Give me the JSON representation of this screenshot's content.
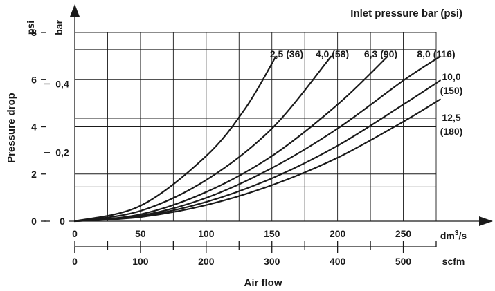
{
  "chart_data": {
    "type": "line",
    "title": "Inlet pressure bar (psi)",
    "ylabel": "Pressure drop",
    "xlabel": "Air flow",
    "x_unit_primary": "dm³/s",
    "x_unit_secondary": "scfm",
    "y_unit_primary": "psi",
    "y_unit_secondary": "bar",
    "xlim": [
      0,
      275
    ],
    "ylim_bar": [
      0,
      0.55
    ],
    "ylim_psi": [
      0,
      8
    ],
    "x_ticks_primary": [
      "0",
      "50",
      "100",
      "150",
      "200",
      "250"
    ],
    "x_ticks_primary_values": [
      0,
      50,
      100,
      150,
      200,
      250
    ],
    "x_ticks_secondary": [
      "0",
      "100",
      "200",
      "300",
      "400",
      "500"
    ],
    "x_ticks_secondary_values": [
      0,
      100,
      200,
      300,
      400,
      500
    ],
    "y_ticks_psi": [
      "0",
      "2",
      "4",
      "6",
      "8"
    ],
    "y_ticks_psi_values": [
      0,
      2,
      4,
      6,
      8
    ],
    "y_ticks_bar": [
      "0",
      "0,2",
      "0,4"
    ],
    "y_ticks_bar_values": [
      0,
      0.2,
      0.4
    ],
    "grid": true,
    "series": [
      {
        "name": "2,5 (36)",
        "label_lines": [
          "2,5 (36)"
        ],
        "x": [
          0,
          50,
          100,
          130,
          153
        ],
        "y": [
          0,
          0.045,
          0.19,
          0.33,
          0.48
        ]
      },
      {
        "name": "4,0 (58)",
        "label_lines": [
          "4,0 (58)"
        ],
        "x": [
          0,
          50,
          100,
          150,
          195
        ],
        "y": [
          0,
          0.03,
          0.12,
          0.27,
          0.48
        ]
      },
      {
        "name": "6,3 (90)",
        "label_lines": [
          "6,3 (90)"
        ],
        "x": [
          0,
          50,
          100,
          150,
          200,
          238
        ],
        "y": [
          0,
          0.02,
          0.085,
          0.19,
          0.34,
          0.48
        ]
      },
      {
        "name": "8,0 (116)",
        "label_lines": [
          "8,0 (116)"
        ],
        "x": [
          0,
          50,
          100,
          150,
          200,
          250,
          278
        ],
        "y": [
          0,
          0.016,
          0.068,
          0.155,
          0.27,
          0.41,
          0.48
        ]
      },
      {
        "name": "10,0 (150)",
        "label_lines": [
          "10,0",
          "(150)"
        ],
        "x": [
          0,
          50,
          100,
          150,
          200,
          250,
          278
        ],
        "y": [
          0,
          0.014,
          0.056,
          0.125,
          0.22,
          0.34,
          0.41
        ]
      },
      {
        "name": "12,5 (180)",
        "label_lines": [
          "12,5",
          "(180)"
        ],
        "x": [
          0,
          50,
          100,
          150,
          200,
          250,
          278
        ],
        "y": [
          0,
          0.012,
          0.047,
          0.105,
          0.185,
          0.29,
          0.355
        ]
      }
    ]
  }
}
